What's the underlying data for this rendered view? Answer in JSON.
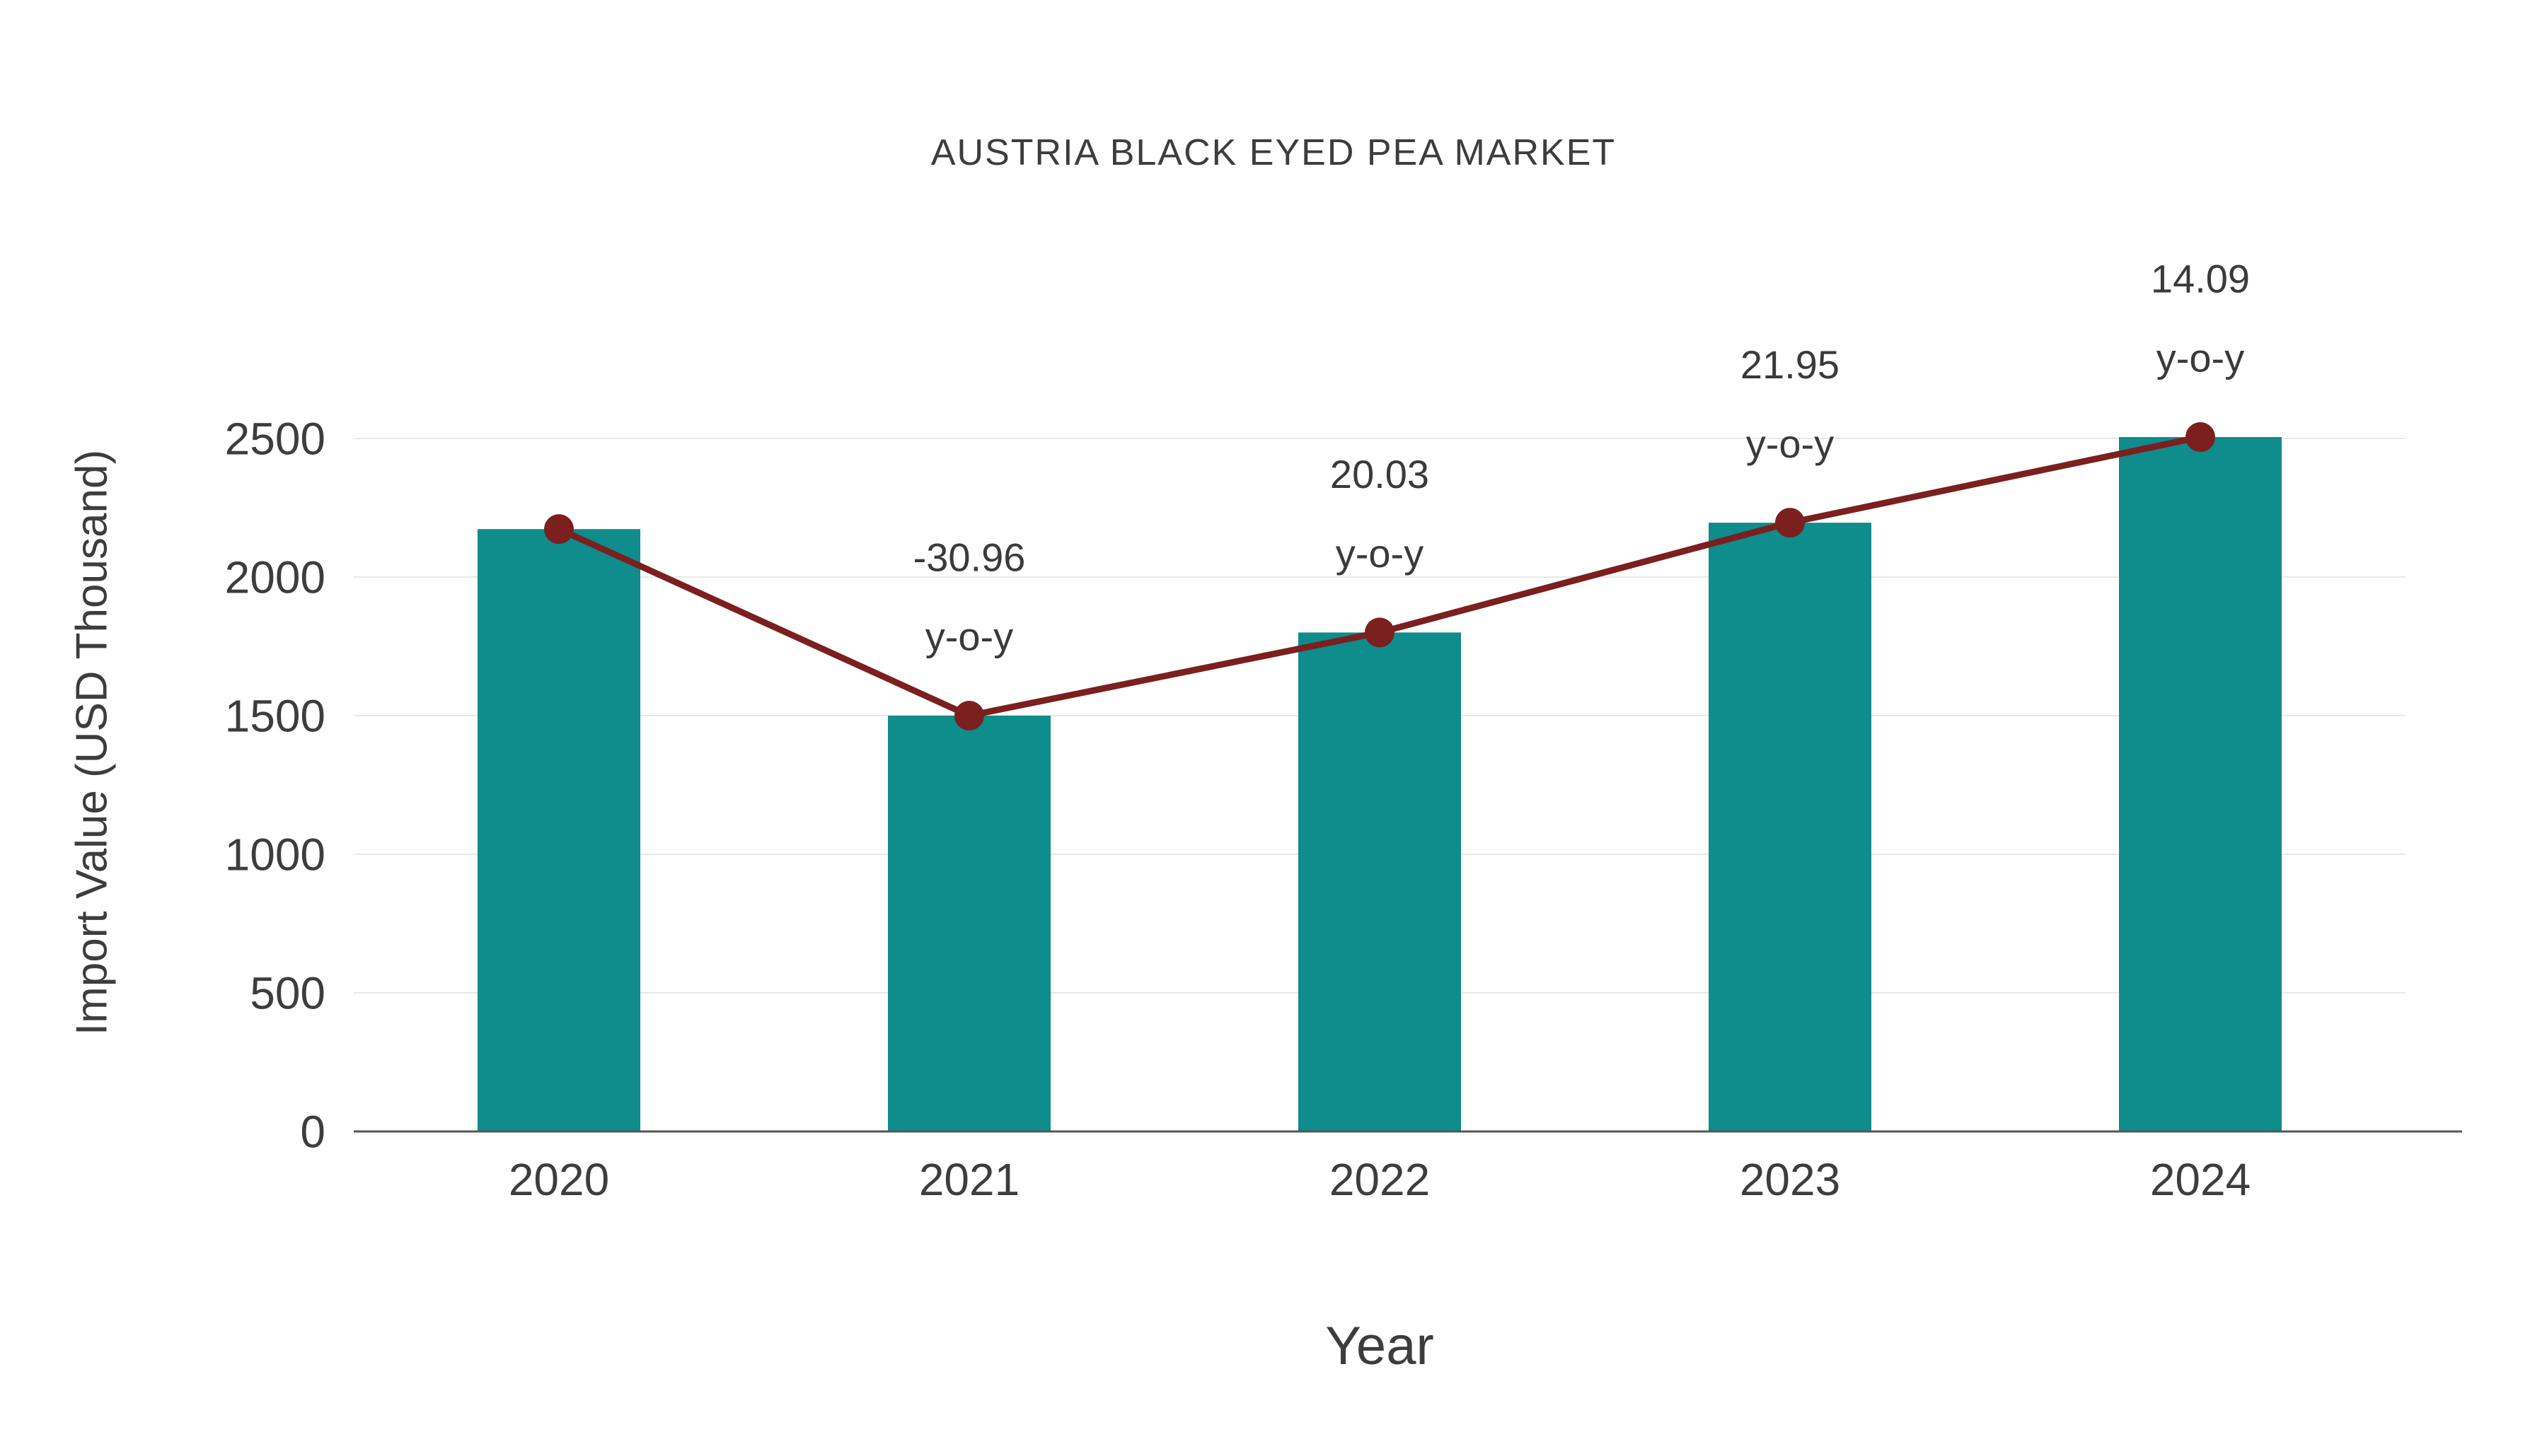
{
  "chart_data": {
    "type": "bar",
    "title": "AUSTRIA BLACK EYED PEA MARKET",
    "xlabel": "Year",
    "ylabel": "Import Value (USD Thousand)",
    "categories": [
      "2020",
      "2021",
      "2022",
      "2023",
      "2024"
    ],
    "series": [
      {
        "name": "Import Value",
        "type": "bar",
        "color": "#0f8c8c",
        "values": [
          2173,
          1500,
          1800,
          2196,
          2505
        ]
      },
      {
        "name": "y-o-y change",
        "type": "line",
        "color": "#7b1f1f",
        "values": [
          2173,
          1500,
          1800,
          2196,
          2505
        ]
      }
    ],
    "annotations": [
      {
        "index": 1,
        "line1": "-30.96",
        "line2": "y-o-y"
      },
      {
        "index": 2,
        "line1": "20.03",
        "line2": "y-o-y"
      },
      {
        "index": 3,
        "line1": "21.95",
        "line2": "y-o-y"
      },
      {
        "index": 4,
        "line1": "14.09",
        "line2": "y-o-y"
      }
    ],
    "yticks": [
      0,
      500,
      1000,
      1500,
      2000,
      2500
    ],
    "ylim": [
      0,
      2500
    ],
    "grid": "horizontal",
    "legend": "none",
    "colors": {
      "bar": "#0f8c8c",
      "line": "#7b1f1f",
      "gridline": "#e8e8e8",
      "axis": "#555555",
      "text": "#3d3d3d",
      "annotation_text": "#3a3a3a"
    }
  }
}
